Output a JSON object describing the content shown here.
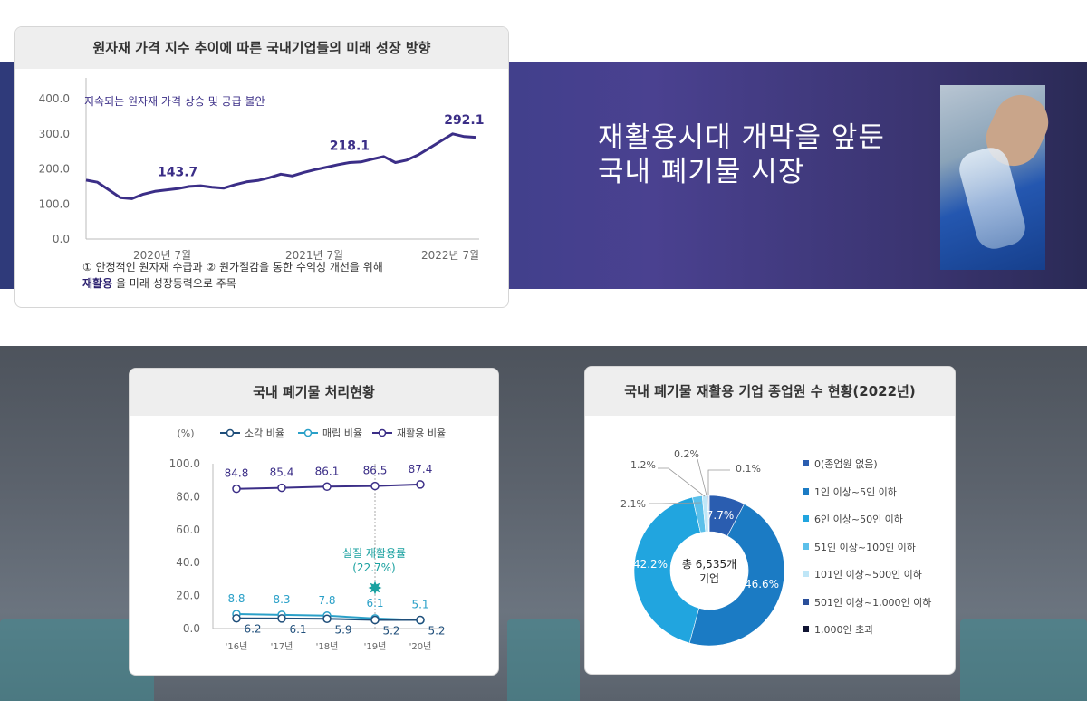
{
  "banner": {
    "title_line1": "재활용시대 개막을 앞둔",
    "title_line2": "국내 폐기물 시장"
  },
  "colors": {
    "primary": "#3b2e87",
    "teal": "#2aa0c8",
    "navy": "#1f4e7a",
    "pie_dark": "#1d5da8",
    "pie_mid": "#1c79c0",
    "pie_light": "#1ca3dd"
  },
  "chart1": {
    "title": "원자재 가격 지수 추이에 따른 국내기업들의 미래 성장 방향",
    "annotation": "지속되는 원자재 가격 상승 및 공급 불안",
    "note_line1": "① 안정적인 원자재 수급과 ② 원가절감을 통한 수익성 개선을 위해",
    "note_line2_bold": "재활용",
    "note_line2_rest": " 을 미래 성장동력으로 주목"
  },
  "chart2": {
    "title": "국내 폐기물 처리현황",
    "unit": "(%)",
    "annotation_line1": "실질 재활용률",
    "annotation_line2": "(22.7%)"
  },
  "chart3": {
    "title": "국내 폐기물 재활용 기업 종업원 수 현황(2022년)",
    "center_line1": "총 6,535개",
    "center_line2": "기업"
  },
  "chart_data": [
    {
      "type": "line",
      "title": "원자재 가격 지수 추이에 따른 국내기업들의 미래 성장 방향",
      "ylim": [
        0,
        400
      ],
      "yticks": [
        "400.0",
        "300.0",
        "200.0",
        "100.0",
        "0.0"
      ],
      "xtick_labels": [
        "2020년 7월",
        "2021년 7월",
        "2022년 7월"
      ],
      "x": [
        "2019-11",
        "2019-12",
        "2020-01",
        "2020-02",
        "2020-03",
        "2020-04",
        "2020-05",
        "2020-06",
        "2020-07",
        "2020-08",
        "2020-09",
        "2020-10",
        "2020-11",
        "2020-12",
        "2021-01",
        "2021-02",
        "2021-03",
        "2021-04",
        "2021-05",
        "2021-06",
        "2021-07",
        "2021-08",
        "2021-09",
        "2021-10",
        "2021-11",
        "2021-12",
        "2022-01",
        "2022-02",
        "2022-03",
        "2022-04",
        "2022-05",
        "2022-06",
        "2022-07",
        "2022-08",
        "2022-09"
      ],
      "values": [
        168,
        162,
        140,
        118,
        115,
        128,
        136,
        140,
        143.7,
        150,
        152,
        148,
        145,
        155,
        163,
        167,
        175,
        185,
        180,
        190,
        198,
        205,
        212,
        218.1,
        220,
        228,
        235,
        218,
        225,
        240,
        260,
        280,
        300,
        292.1,
        290
      ],
      "data_labels": [
        {
          "x": "2020-07",
          "label": "143.7"
        },
        {
          "x": "2021-10",
          "label": "218.1"
        },
        {
          "x": "2022-08",
          "label": "292.1"
        }
      ],
      "grid": false
    },
    {
      "type": "line",
      "title": "국내 폐기물 처리현황",
      "ylabel": "(%)",
      "ylim": [
        0,
        100
      ],
      "yticks": [
        "100.0",
        "80.0",
        "60.0",
        "40.0",
        "20.0",
        "0.0"
      ],
      "categories": [
        "'16년",
        "'17년",
        "'18년",
        "'19년",
        "'20년"
      ],
      "legend_position": "top",
      "series": [
        {
          "name": "소각 비율",
          "color": "#1f4e7a",
          "values": [
            6.2,
            6.1,
            5.9,
            5.2,
            5.2
          ],
          "labels": [
            "6.2",
            "6.1",
            "5.9",
            "5.2",
            "5.2"
          ]
        },
        {
          "name": "매립 비율",
          "color": "#2aa0c8",
          "values": [
            8.8,
            8.3,
            7.8,
            6.1,
            5.1
          ],
          "labels": [
            "8.8",
            "8.3",
            "7.8",
            "6.1",
            "5.1"
          ]
        },
        {
          "name": "재활용 비율",
          "color": "#3b2e87",
          "values": [
            84.8,
            85.4,
            86.1,
            86.5,
            87.4
          ],
          "labels": [
            "84.8",
            "85.4",
            "86.1",
            "86.5",
            "87.4"
          ]
        }
      ]
    },
    {
      "type": "pie",
      "title": "국내 폐기물 재활용 기업 종업원 수 현황(2022년)",
      "legend_position": "right",
      "slices": [
        {
          "name": "0(종업원 없음)",
          "value": 7.7,
          "label": "7.7%",
          "color": "#2a5db0"
        },
        {
          "name": "1인 이상~5인 이하",
          "value": 46.6,
          "label": "46.6%",
          "color": "#1b7bc4"
        },
        {
          "name": "6인 이상~50인 이하",
          "value": 42.2,
          "label": "42.2%",
          "color": "#21a5df"
        },
        {
          "name": "51인 이상~100인 이하",
          "value": 2.1,
          "label": "2.1%",
          "color": "#5cc0ea"
        },
        {
          "name": "101인 이상~500인 이하",
          "value": 1.2,
          "label": "1.2%",
          "color": "#bfe6f7"
        },
        {
          "name": "501인 이상~1,000인 이하",
          "value": 0.2,
          "label": "0.2%",
          "color": "#2a4f9a"
        },
        {
          "name": "1,000인 초과",
          "value": 0.1,
          "label": "0.1%",
          "color": "#101433"
        }
      ]
    }
  ]
}
